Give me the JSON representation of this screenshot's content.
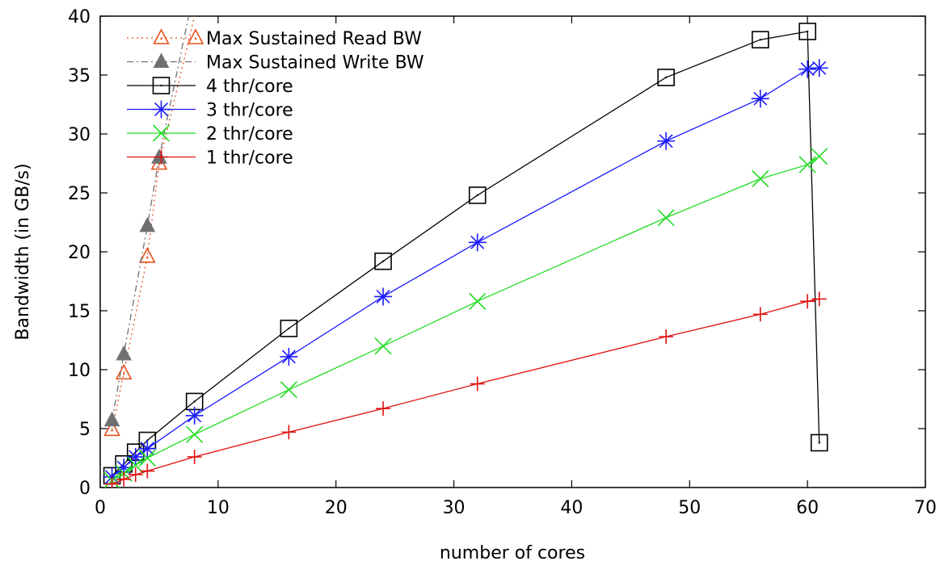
{
  "chart_data": {
    "type": "line",
    "title": "",
    "xlabel": "number of cores",
    "ylabel": "Bandwidth (in GB/s)",
    "xlim": [
      0,
      70
    ],
    "ylim": [
      0,
      40
    ],
    "xticks": [
      0,
      10,
      20,
      30,
      40,
      50,
      60,
      70
    ],
    "yticks": [
      0,
      5,
      10,
      15,
      20,
      25,
      30,
      35,
      40
    ],
    "grid": false,
    "legend_position": "top-left",
    "series": [
      {
        "name": "Max Sustained Read BW",
        "color": "#e8501c",
        "dash": "2,4",
        "marker": "triangle-open",
        "x": [
          1,
          2,
          4,
          5,
          8
        ],
        "y": [
          4.9,
          9.7,
          19.6,
          27.5,
          40
        ]
      },
      {
        "name": "Max Sustained Write BW",
        "color": "#707070",
        "dash": "8,4,2,4",
        "marker": "triangle-filled",
        "x": [
          1,
          2,
          4,
          5,
          7.5
        ],
        "y": [
          5.7,
          11.3,
          22.2,
          28,
          40
        ]
      },
      {
        "name": "4 thr/core",
        "color": "#000000",
        "dash": "",
        "marker": "square-open",
        "x": [
          1,
          2,
          3,
          4,
          8,
          16,
          24,
          32,
          48,
          56,
          60,
          61
        ],
        "y": [
          1.0,
          2.0,
          3.0,
          4.0,
          7.3,
          13.5,
          19.2,
          24.8,
          34.8,
          38.0,
          38.7,
          3.8
        ]
      },
      {
        "name": "3 thr/core",
        "color": "#1a1aff",
        "dash": "",
        "marker": "asterisk",
        "x": [
          1,
          2,
          3,
          4,
          8,
          16,
          24,
          32,
          48,
          56,
          60,
          61
        ],
        "y": [
          0.9,
          1.7,
          2.6,
          3.3,
          6.1,
          11.1,
          16.2,
          20.8,
          29.4,
          33.0,
          35.5,
          35.6
        ]
      },
      {
        "name": "2 thr/core",
        "color": "#22dd22",
        "dash": "",
        "marker": "x",
        "x": [
          1,
          2,
          3,
          4,
          8,
          16,
          24,
          32,
          48,
          56,
          60,
          61
        ],
        "y": [
          0.6,
          1.2,
          1.9,
          2.5,
          4.5,
          8.3,
          12.0,
          15.8,
          22.9,
          26.2,
          27.4,
          28.1
        ]
      },
      {
        "name": "1 thr/core",
        "color": "#e01010",
        "dash": "",
        "marker": "plus",
        "x": [
          1,
          2,
          3,
          4,
          8,
          16,
          24,
          32,
          48,
          56,
          60,
          61
        ],
        "y": [
          0.3,
          0.7,
          1.1,
          1.4,
          2.6,
          4.7,
          6.7,
          8.8,
          12.8,
          14.7,
          15.8,
          16.0
        ]
      }
    ]
  }
}
